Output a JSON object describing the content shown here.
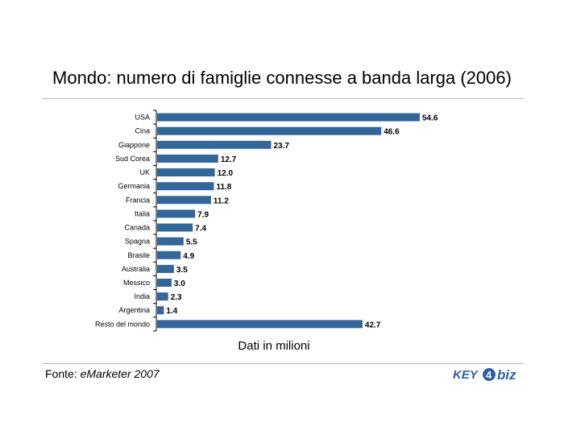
{
  "chart_data": {
    "type": "bar",
    "orientation": "horizontal",
    "title": "Mondo: numero di famiglie connesse a banda larga (2006)",
    "xlabel": "Dati in milioni",
    "ylabel": "",
    "xlim": [
      0,
      60
    ],
    "grid": false,
    "categories": [
      "USA",
      "Cina",
      "Giappone",
      "Sud Corea",
      "UK",
      "Germania",
      "Francia",
      "Italia",
      "Canada",
      "Spagna",
      "Brasile",
      "Australia",
      "Messico",
      "India",
      "Argentina",
      "Resto del mondo"
    ],
    "values": [
      54.6,
      46.6,
      23.7,
      12.7,
      12.0,
      11.8,
      11.2,
      7.9,
      7.4,
      5.5,
      4.9,
      3.5,
      3.0,
      2.3,
      1.4,
      42.7
    ],
    "value_labels": [
      "54.6",
      "46.6",
      "23.7",
      "12.7",
      "12.0",
      "11.8",
      "11.2",
      "7.9",
      "7.4",
      "5.5",
      "4.9",
      "3.5",
      "3.0",
      "2.3",
      "1.4",
      "42.7"
    ],
    "bar_color": "#336699"
  },
  "source": {
    "prefix": "Fonte: ",
    "name": "eMarketer 2007"
  },
  "logo": {
    "text_key": "KEY",
    "text_num": "4",
    "text_biz": "biz",
    "color_key": "#2e5fa8",
    "color_biz": "#2e5fa8"
  }
}
